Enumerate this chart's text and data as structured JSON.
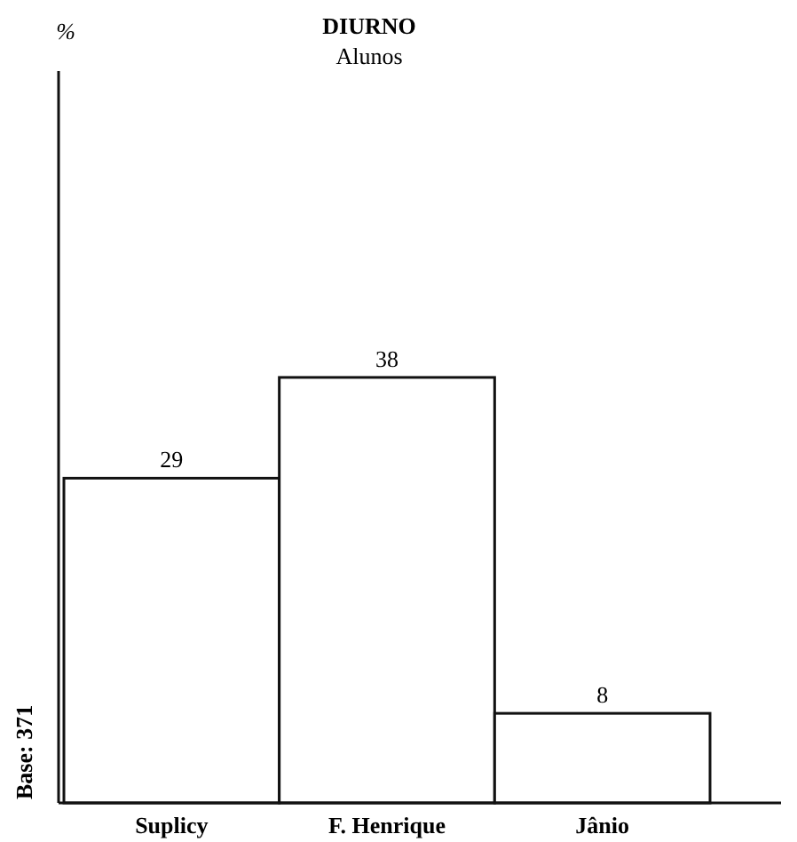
{
  "chart_data": {
    "type": "bar",
    "title": "DIURNO",
    "subtitle": "Alunos",
    "categories": [
      "Suplicy",
      "F. Henrique",
      "Jânio"
    ],
    "values": [
      29,
      38,
      8
    ],
    "color": "#ffffff",
    "data_labels": true,
    "annotations": [
      "%",
      "Base: 371"
    ]
  }
}
